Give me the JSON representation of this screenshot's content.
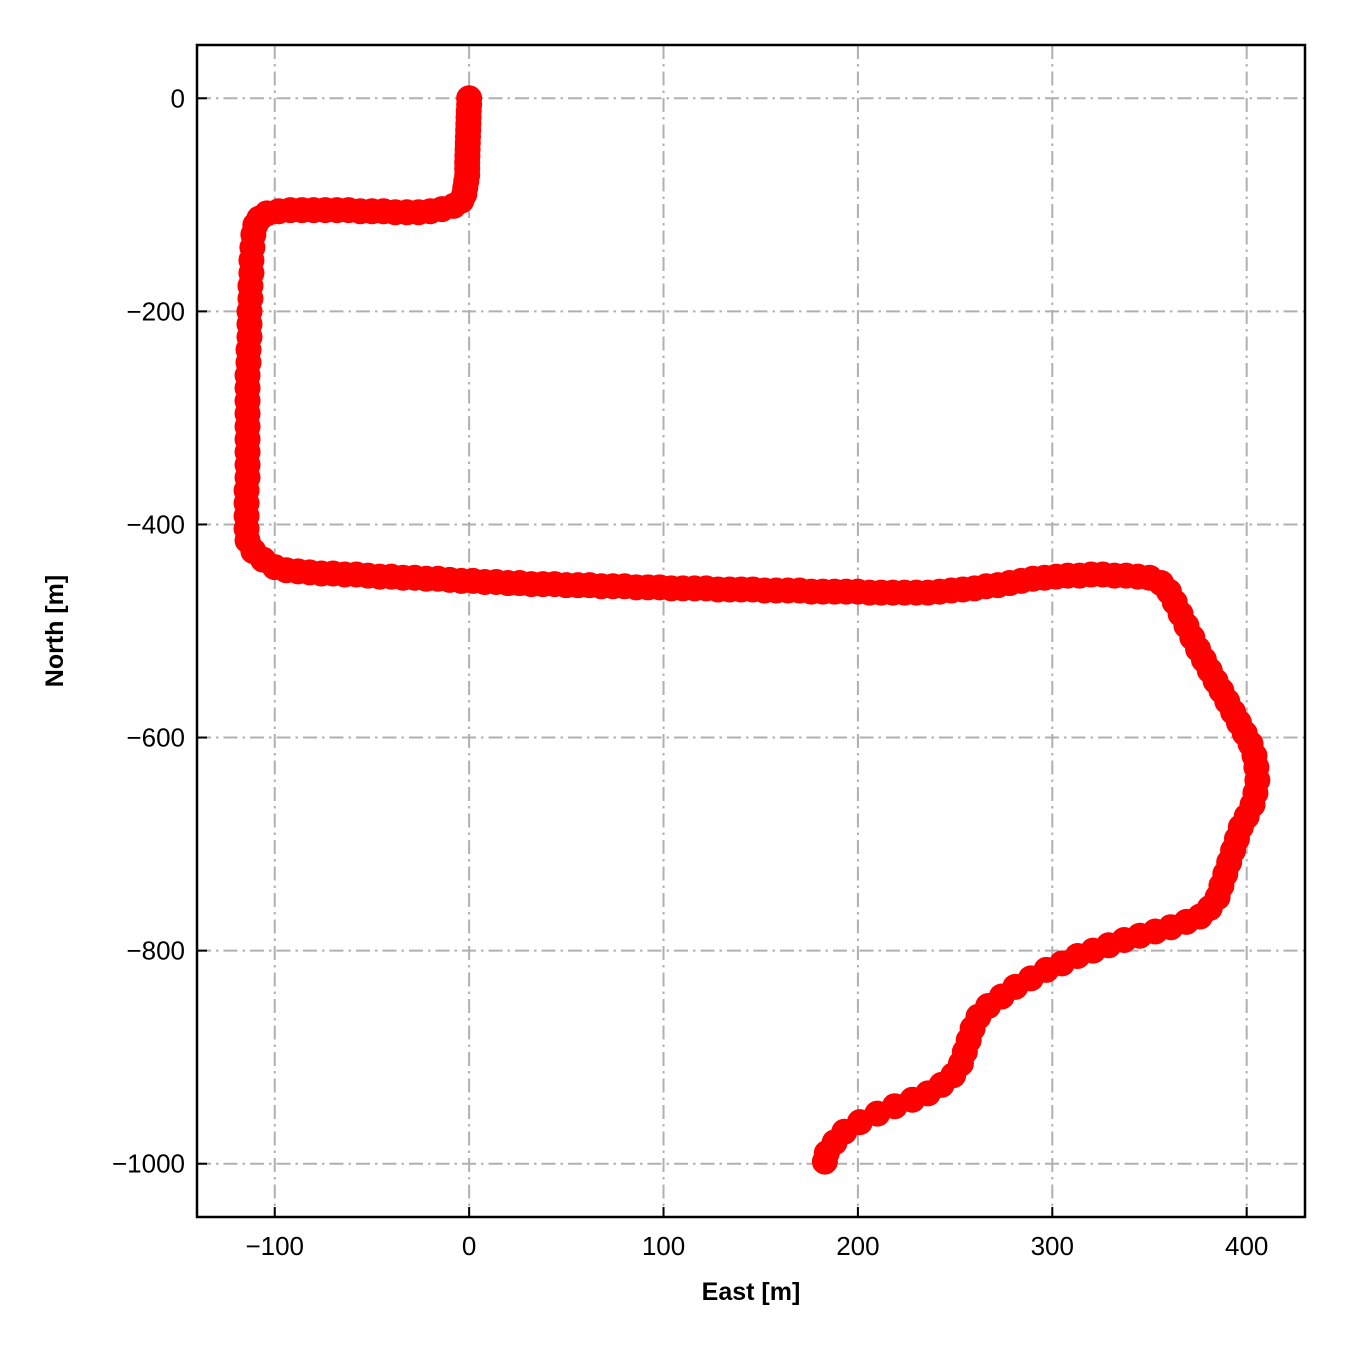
{
  "chart_data": {
    "type": "scatter",
    "xlabel": "East [m]",
    "ylabel": "North [m]",
    "xlim": [
      -140,
      430
    ],
    "ylim": [
      -1050,
      50
    ],
    "xticks": [
      -100,
      0,
      100,
      200,
      300,
      400
    ],
    "yticks": [
      0,
      -200,
      -400,
      -600,
      -800,
      -1000
    ],
    "xtick_labels": [
      "−100",
      "0",
      "100",
      "200",
      "300",
      "400"
    ],
    "ytick_labels": [
      "0",
      "−200",
      "−400",
      "−600",
      "−800",
      "−1000"
    ],
    "grid": true,
    "grid_style": "dash-dot",
    "grid_color": "#b0b0b0",
    "series": [
      {
        "color": "#ff0000",
        "marker": "circle",
        "points": [
          [
            0,
            0
          ],
          [
            0,
            -6
          ],
          [
            -0.2,
            -12
          ],
          [
            -0.3,
            -18
          ],
          [
            -0.4,
            -24
          ],
          [
            -0.5,
            -30
          ],
          [
            -0.6,
            -36
          ],
          [
            -0.7,
            -42
          ],
          [
            -0.8,
            -48
          ],
          [
            -0.9,
            -54
          ],
          [
            -1,
            -60
          ],
          [
            -1,
            -66
          ],
          [
            -1,
            -72
          ],
          [
            -1.5,
            -78
          ],
          [
            -2,
            -84
          ],
          [
            -2.5,
            -90
          ],
          [
            -4,
            -96
          ],
          [
            -8,
            -101
          ],
          [
            -14,
            -104
          ],
          [
            -20,
            -106
          ],
          [
            -26,
            -107
          ],
          [
            -32,
            -107
          ],
          [
            -38,
            -107
          ],
          [
            -44,
            -106
          ],
          [
            -50,
            -106
          ],
          [
            -56,
            -106
          ],
          [
            -62,
            -105
          ],
          [
            -68,
            -105
          ],
          [
            -74,
            -105
          ],
          [
            -80,
            -105
          ],
          [
            -86,
            -105
          ],
          [
            -92,
            -105
          ],
          [
            -98,
            -106
          ],
          [
            -104,
            -108
          ],
          [
            -108,
            -113
          ],
          [
            -110,
            -119
          ],
          [
            -111,
            -128
          ],
          [
            -111.5,
            -140
          ],
          [
            -112,
            -152
          ],
          [
            -112,
            -164
          ],
          [
            -112.5,
            -176
          ],
          [
            -112.5,
            -188
          ],
          [
            -113,
            -200
          ],
          [
            -113,
            -212
          ],
          [
            -113,
            -224
          ],
          [
            -113.5,
            -236
          ],
          [
            -113.5,
            -248
          ],
          [
            -114,
            -260
          ],
          [
            -114,
            -272
          ],
          [
            -114,
            -284
          ],
          [
            -114,
            -296
          ],
          [
            -114,
            -308
          ],
          [
            -114,
            -320
          ],
          [
            -114,
            -332
          ],
          [
            -114,
            -344
          ],
          [
            -114,
            -356
          ],
          [
            -114.5,
            -368
          ],
          [
            -114.5,
            -380
          ],
          [
            -114.5,
            -392
          ],
          [
            -114.5,
            -404
          ],
          [
            -114,
            -415
          ],
          [
            -111,
            -425
          ],
          [
            -106,
            -433
          ],
          [
            -100,
            -440
          ],
          [
            -94,
            -443
          ],
          [
            -88,
            -444
          ],
          [
            -82,
            -445
          ],
          [
            -76,
            -446
          ],
          [
            -70,
            -446
          ],
          [
            -64,
            -447
          ],
          [
            -58,
            -447
          ],
          [
            -52,
            -448
          ],
          [
            -46,
            -449
          ],
          [
            -40,
            -449
          ],
          [
            -34,
            -450
          ],
          [
            -28,
            -450
          ],
          [
            -22,
            -451
          ],
          [
            -16,
            -451
          ],
          [
            -10,
            -452
          ],
          [
            -4,
            -453
          ],
          [
            2,
            -453
          ],
          [
            8,
            -454
          ],
          [
            14,
            -454
          ],
          [
            20,
            -455
          ],
          [
            26,
            -455
          ],
          [
            32,
            -456
          ],
          [
            38,
            -456
          ],
          [
            44,
            -456
          ],
          [
            50,
            -457
          ],
          [
            56,
            -457
          ],
          [
            62,
            -457
          ],
          [
            68,
            -458
          ],
          [
            74,
            -458
          ],
          [
            80,
            -458
          ],
          [
            86,
            -459
          ],
          [
            92,
            -459
          ],
          [
            98,
            -459
          ],
          [
            104,
            -460
          ],
          [
            110,
            -460
          ],
          [
            116,
            -460
          ],
          [
            122,
            -460
          ],
          [
            128,
            -461
          ],
          [
            134,
            -461
          ],
          [
            140,
            -461
          ],
          [
            146,
            -461
          ],
          [
            152,
            -462
          ],
          [
            158,
            -462
          ],
          [
            164,
            -462
          ],
          [
            170,
            -462
          ],
          [
            176,
            -463
          ],
          [
            182,
            -463
          ],
          [
            188,
            -463
          ],
          [
            194,
            -463
          ],
          [
            200,
            -463
          ],
          [
            206,
            -464
          ],
          [
            212,
            -464
          ],
          [
            218,
            -464
          ],
          [
            224,
            -464
          ],
          [
            230,
            -464
          ],
          [
            236,
            -464
          ],
          [
            242,
            -463
          ],
          [
            248,
            -462
          ],
          [
            254,
            -461
          ],
          [
            260,
            -460
          ],
          [
            266,
            -458
          ],
          [
            272,
            -457
          ],
          [
            278,
            -455
          ],
          [
            284,
            -453
          ],
          [
            290,
            -451
          ],
          [
            296,
            -450
          ],
          [
            302,
            -449
          ],
          [
            308,
            -448
          ],
          [
            314,
            -448
          ],
          [
            320,
            -447
          ],
          [
            326,
            -447
          ],
          [
            332,
            -448
          ],
          [
            338,
            -448
          ],
          [
            344,
            -449
          ],
          [
            350,
            -450
          ],
          [
            356,
            -455
          ],
          [
            360,
            -463
          ],
          [
            363,
            -473
          ],
          [
            366,
            -484
          ],
          [
            369,
            -495
          ],
          [
            372,
            -506
          ],
          [
            375,
            -517
          ],
          [
            378,
            -527
          ],
          [
            381,
            -537
          ],
          [
            384,
            -547
          ],
          [
            387,
            -556
          ],
          [
            390,
            -566
          ],
          [
            393,
            -576
          ],
          [
            396,
            -586
          ],
          [
            399,
            -596
          ],
          [
            402,
            -606
          ],
          [
            404,
            -617
          ],
          [
            405,
            -628
          ],
          [
            405.5,
            -640
          ],
          [
            404.5,
            -652
          ],
          [
            403,
            -663
          ],
          [
            400,
            -674
          ],
          [
            397,
            -684
          ],
          [
            395,
            -695
          ],
          [
            393,
            -706
          ],
          [
            391,
            -717
          ],
          [
            389,
            -728
          ],
          [
            387,
            -739
          ],
          [
            385,
            -750
          ],
          [
            381,
            -760
          ],
          [
            376,
            -768
          ],
          [
            369,
            -773
          ],
          [
            361,
            -778
          ],
          [
            353,
            -782
          ],
          [
            345,
            -786
          ],
          [
            337,
            -790
          ],
          [
            329,
            -795
          ],
          [
            321,
            -800
          ],
          [
            313,
            -805
          ],
          [
            305,
            -812
          ],
          [
            297,
            -818
          ],
          [
            289,
            -826
          ],
          [
            281,
            -834
          ],
          [
            274,
            -843
          ],
          [
            267,
            -852
          ],
          [
            262,
            -862
          ],
          [
            259,
            -873
          ],
          [
            257,
            -884
          ],
          [
            255,
            -895
          ],
          [
            253,
            -906
          ],
          [
            249,
            -917
          ],
          [
            243,
            -926
          ],
          [
            236,
            -934
          ],
          [
            228,
            -940
          ],
          [
            219,
            -946
          ],
          [
            210,
            -953
          ],
          [
            201,
            -961
          ],
          [
            193,
            -970
          ],
          [
            188,
            -980
          ],
          [
            184,
            -990
          ],
          [
            183,
            -998
          ]
        ]
      }
    ]
  }
}
